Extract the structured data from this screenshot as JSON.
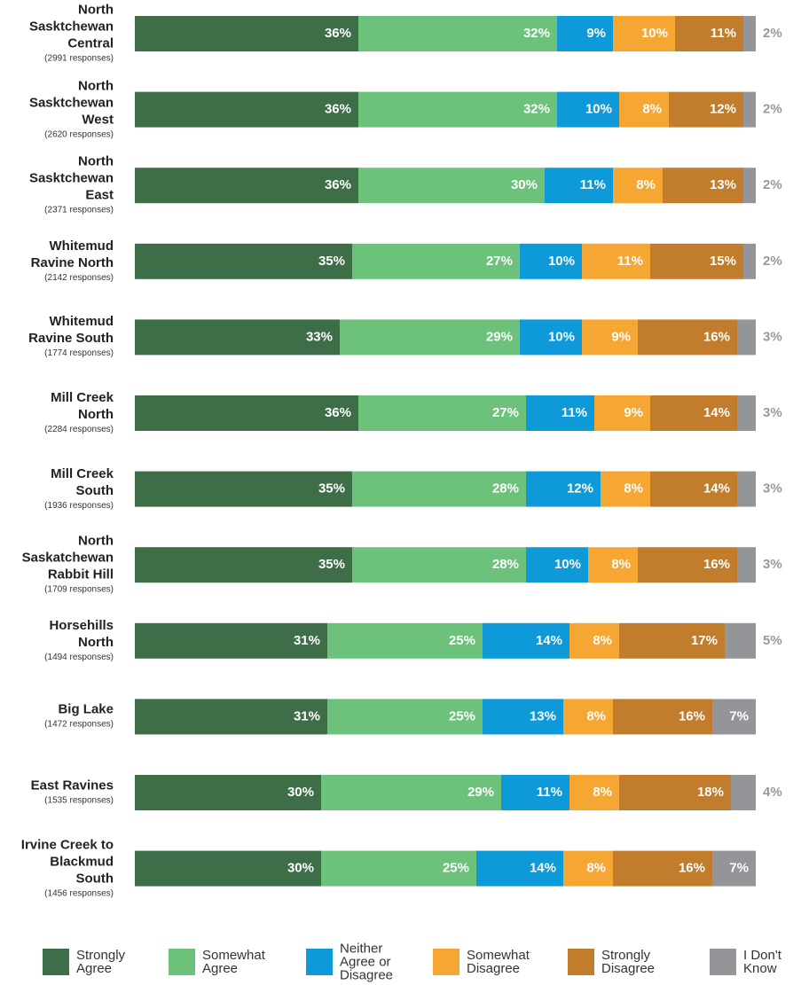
{
  "chart_data": {
    "type": "stacked-bar-horizontal",
    "categories": [
      "North Sasktchewan Central",
      "North Sasktchewan West",
      "North Sasktchewan East",
      "Whitemud Ravine North",
      "Whitemud Ravine South",
      "Mill Creek North",
      "Mill Creek South",
      "North Saskatchewan Rabbit Hill",
      "Horsehills North",
      "Big Lake",
      "East Ravines",
      "Irvine Creek to Blackmud South"
    ],
    "category_notes": [
      "(2991 responses)",
      "(2620 responses)",
      "(2371 responses)",
      "(2142 responses)",
      "(1774 responses)",
      "(2284 responses)",
      "(1936 responses)",
      "(1709 responses)",
      "(1494 responses)",
      "(1472 responses)",
      "(1535 responses)",
      "(1456 responses)"
    ],
    "xlim": [
      0,
      100
    ],
    "series": [
      {
        "name": "Strongly Agree",
        "color": "#3d6e48",
        "values": [
          36,
          36,
          36,
          35,
          33,
          36,
          35,
          35,
          31,
          31,
          30,
          30
        ],
        "value_labels": [
          "36%",
          "36%",
          "36%",
          "35%",
          "33%",
          "36%",
          "35%",
          "35%",
          "31%",
          "31%",
          "30%",
          "30%"
        ]
      },
      {
        "name": "Somewhat Agree",
        "color": "#6cc27b",
        "values": [
          32,
          32,
          30,
          27,
          29,
          27,
          28,
          28,
          25,
          25,
          29,
          25
        ],
        "value_labels": [
          "32%",
          "32%",
          "30%",
          "27%",
          "29%",
          "27%",
          "28%",
          "28%",
          "25%",
          "25%",
          "29%",
          "25%"
        ]
      },
      {
        "name": "Neither Agree or Disagree",
        "color": "#0e9ad8",
        "values": [
          9,
          10,
          11,
          10,
          10,
          11,
          12,
          10,
          14,
          13,
          11,
          14
        ],
        "value_labels": [
          "9%",
          "10%",
          "11%",
          "10%",
          "10%",
          "11%",
          "12%",
          "10%",
          "14%",
          "13%",
          "11%",
          "14%"
        ]
      },
      {
        "name": "Somewhat Disagree",
        "color": "#f5a633",
        "values": [
          10,
          8,
          8,
          11,
          9,
          9,
          8,
          8,
          8,
          8,
          8,
          8
        ],
        "value_labels": [
          "10%",
          "8%",
          "8%",
          "11%",
          "9%",
          "9%",
          "8%",
          "8%",
          "8%",
          "8%",
          "8%",
          "8%"
        ]
      },
      {
        "name": "Strongly Disagree",
        "color": "#c17c2c",
        "values": [
          11,
          12,
          13,
          15,
          16,
          14,
          14,
          16,
          17,
          16,
          18,
          16
        ],
        "value_labels": [
          "11%",
          "12%",
          "13%",
          "15%",
          "16%",
          "14%",
          "14%",
          "16%",
          "17%",
          "16%",
          "18%",
          "16%"
        ]
      },
      {
        "name": "I Don't Know",
        "color": "#939598",
        "values": [
          2,
          2,
          2,
          2,
          3,
          3,
          3,
          3,
          5,
          7,
          4,
          7
        ],
        "value_labels": [
          "2%",
          "2%",
          "2%",
          "2%",
          "3%",
          "3%",
          "3%",
          "3%",
          "5%",
          "7%",
          "4%",
          "7%"
        ]
      }
    ]
  }
}
